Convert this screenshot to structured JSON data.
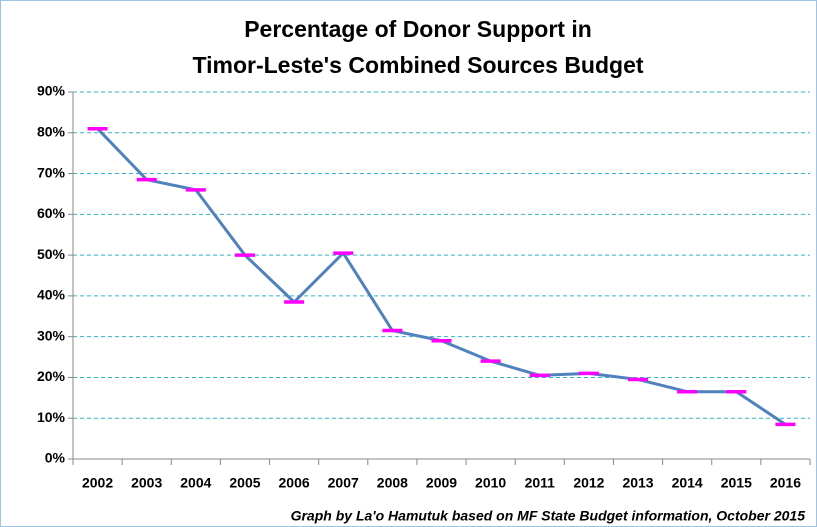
{
  "chart_data": {
    "type": "line",
    "title": [
      "Percentage of Donor Support in",
      "Timor-Leste's Combined Sources Budget"
    ],
    "annotation": "Graph by La'o Hamutuk based on MF State Budget information, October 2015",
    "categories": [
      "2002",
      "2003",
      "2004",
      "2005",
      "2006",
      "2007",
      "2008",
      "2009",
      "2010",
      "2011",
      "2012",
      "2013",
      "2014",
      "2015",
      "2016"
    ],
    "series": [
      {
        "name": "Donor support",
        "color": "#4f81bd",
        "marker_color": "#ff00ff",
        "values": [
          81,
          68.5,
          66,
          50,
          38.5,
          50.5,
          31.5,
          29,
          24,
          20.5,
          21,
          19.5,
          16.5,
          16.5,
          8.5
        ]
      }
    ],
    "ylim": [
      0,
      90
    ],
    "yticks": [
      {
        "value": 0,
        "label": "0%"
      },
      {
        "value": 10,
        "label": "10%"
      },
      {
        "value": 20,
        "label": "20%"
      },
      {
        "value": 30,
        "label": "30%"
      },
      {
        "value": 40,
        "label": "40%"
      },
      {
        "value": 50,
        "label": "50%"
      },
      {
        "value": 60,
        "label": "60%"
      },
      {
        "value": 70,
        "label": "70%"
      },
      {
        "value": 80,
        "label": "80%"
      },
      {
        "value": 90,
        "label": "90%"
      }
    ],
    "grid": true
  }
}
